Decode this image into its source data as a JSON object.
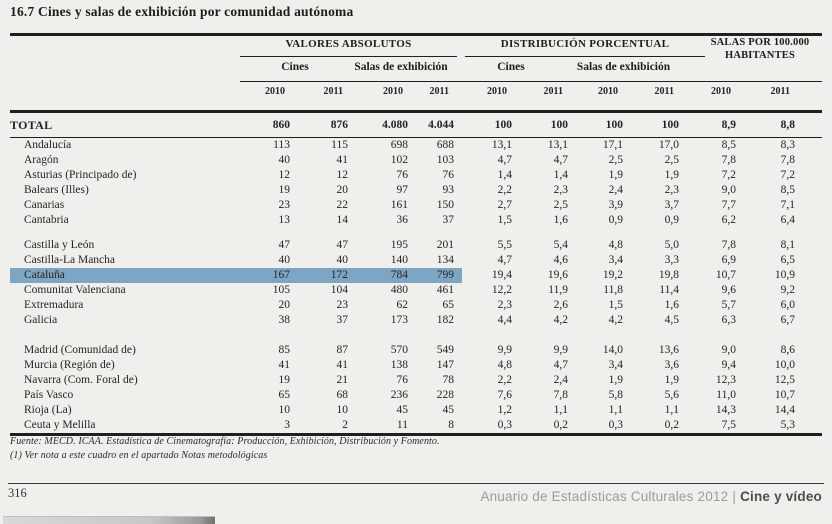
{
  "title": "16.7 Cines y salas de exhibición por comunidad autónoma",
  "table": {
    "header": {
      "groups": [
        {
          "label": "VALORES ABSOLUTOS",
          "subs": [
            "Cines",
            "Salas de exhibición"
          ]
        },
        {
          "label": "DISTRIBUCIÓN PORCENTUAL",
          "subs": [
            "Cines",
            "Salas de exhibición"
          ]
        },
        {
          "label_line1": "SALAS POR 100.000",
          "label_line2": "HABITANTES"
        }
      ],
      "year_cols": [
        "2010",
        "2011",
        "2010",
        "2011",
        "2010",
        "2011",
        "2010",
        "2011",
        "2010",
        "2011"
      ]
    },
    "total": {
      "label": "TOTAL",
      "values": [
        "860",
        "876",
        "4.080",
        "4.044",
        "100",
        "100",
        "100",
        "100",
        "8,9",
        "8,8"
      ]
    },
    "groups": [
      {
        "rows": [
          {
            "label": "Andalucía",
            "values": [
              "113",
              "115",
              "698",
              "688",
              "13,1",
              "13,1",
              "17,1",
              "17,0",
              "8,5",
              "8,3"
            ]
          },
          {
            "label": "Aragón",
            "values": [
              "40",
              "41",
              "102",
              "103",
              "4,7",
              "4,7",
              "2,5",
              "2,5",
              "7,8",
              "7,8"
            ]
          },
          {
            "label": "Asturias (Principado de)",
            "values": [
              "12",
              "12",
              "76",
              "76",
              "1,4",
              "1,4",
              "1,9",
              "1,9",
              "7,2",
              "7,2"
            ]
          },
          {
            "label": "Balears (Illes)",
            "values": [
              "19",
              "20",
              "97",
              "93",
              "2,2",
              "2,3",
              "2,4",
              "2,3",
              "9,0",
              "8,5"
            ]
          },
          {
            "label": "Canarias",
            "values": [
              "23",
              "22",
              "161",
              "150",
              "2,7",
              "2,5",
              "3,9",
              "3,7",
              "7,7",
              "7,1"
            ]
          },
          {
            "label": "Cantabria",
            "values": [
              "13",
              "14",
              "36",
              "37",
              "1,5",
              "1,6",
              "0,9",
              "0,9",
              "6,2",
              "6,4"
            ]
          }
        ]
      },
      {
        "rows": [
          {
            "label": "Castilla y León",
            "values": [
              "47",
              "47",
              "195",
              "201",
              "5,5",
              "5,4",
              "4,8",
              "5,0",
              "7,8",
              "8,1"
            ]
          },
          {
            "label": "Castilla-La Mancha",
            "values": [
              "40",
              "40",
              "140",
              "134",
              "4,7",
              "4,6",
              "3,4",
              "3,3",
              "6,9",
              "6,5"
            ]
          },
          {
            "label": "Cataluña",
            "highlighted": true,
            "values": [
              "167",
              "172",
              "784",
              "799",
              "19,4",
              "19,6",
              "19,2",
              "19,8",
              "10,7",
              "10,9"
            ]
          },
          {
            "label": "Comunitat Valenciana",
            "values": [
              "105",
              "104",
              "480",
              "461",
              "12,2",
              "11,9",
              "11,8",
              "11,4",
              "9,6",
              "9,2"
            ]
          },
          {
            "label": "Extremadura",
            "values": [
              "20",
              "23",
              "62",
              "65",
              "2,3",
              "2,6",
              "1,5",
              "1,6",
              "5,7",
              "6,0"
            ]
          },
          {
            "label": "Galicia",
            "values": [
              "38",
              "37",
              "173",
              "182",
              "4,4",
              "4,2",
              "4,2",
              "4,5",
              "6,3",
              "6,7"
            ]
          }
        ]
      },
      {
        "rows": [
          {
            "label": "Madrid (Comunidad de)",
            "values": [
              "85",
              "87",
              "570",
              "549",
              "9,9",
              "9,9",
              "14,0",
              "13,6",
              "9,0",
              "8,6"
            ]
          },
          {
            "label": "Murcia (Región de)",
            "values": [
              "41",
              "41",
              "138",
              "147",
              "4,8",
              "4,7",
              "3,4",
              "3,6",
              "9,4",
              "10,0"
            ]
          },
          {
            "label": "Navarra (Com. Foral de)",
            "values": [
              "19",
              "21",
              "76",
              "78",
              "2,2",
              "2,4",
              "1,9",
              "1,9",
              "12,3",
              "12,5"
            ]
          },
          {
            "label": "País Vasco",
            "values": [
              "65",
              "68",
              "236",
              "228",
              "7,6",
              "7,8",
              "5,8",
              "5,6",
              "11,0",
              "10,7"
            ]
          },
          {
            "label": "Rioja (La)",
            "values": [
              "10",
              "10",
              "45",
              "45",
              "1,2",
              "1,1",
              "1,1",
              "1,1",
              "14,3",
              "14,4"
            ]
          },
          {
            "label": "Ceuta y Melilla",
            "values": [
              "3",
              "2",
              "11",
              "8",
              "0,3",
              "0,2",
              "0,3",
              "0,2",
              "7,5",
              "5,3"
            ]
          }
        ]
      }
    ]
  },
  "notes": {
    "source": "Fuente: MECD. ICAA. Estadística de Cinematografía: Producción, Exhibición, Distribución y Fomento.",
    "note1": "(1) Ver nota a este cuadro en el apartado Notas metodológicas"
  },
  "footer": {
    "page_number": "316",
    "publication": "Anuario de Estadísticas Culturales 2012",
    "separator": "|",
    "section": "Cine y vídeo"
  },
  "colors": {
    "highlight_row": "#7da6c4",
    "background": "#f0efec",
    "text": "#242424",
    "rule": "#1f1f1f",
    "footer_gray": "#9b9b9b",
    "footer_dark": "#4e4e4e"
  }
}
